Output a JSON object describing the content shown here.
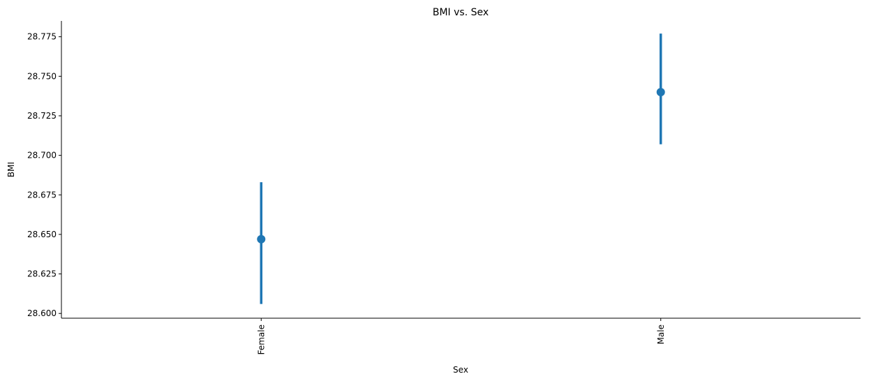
{
  "chart_data": {
    "type": "scatter",
    "title": "BMI vs. Sex",
    "xlabel": "Sex",
    "ylabel": "BMI",
    "categories": [
      "Female",
      "Male"
    ],
    "series": [
      {
        "values": [
          28.647,
          28.74
        ],
        "ci_low": [
          28.606,
          28.707
        ],
        "ci_high": [
          28.683,
          28.777
        ]
      }
    ],
    "ylim": [
      28.597,
      28.785
    ],
    "yticks": [
      28.6,
      28.625,
      28.65,
      28.675,
      28.7,
      28.725,
      28.75,
      28.775
    ],
    "ytick_labels": [
      "28.600",
      "28.625",
      "28.650",
      "28.675",
      "28.700",
      "28.725",
      "28.750",
      "28.775"
    ],
    "grid": false,
    "color": "#1f77b4"
  }
}
